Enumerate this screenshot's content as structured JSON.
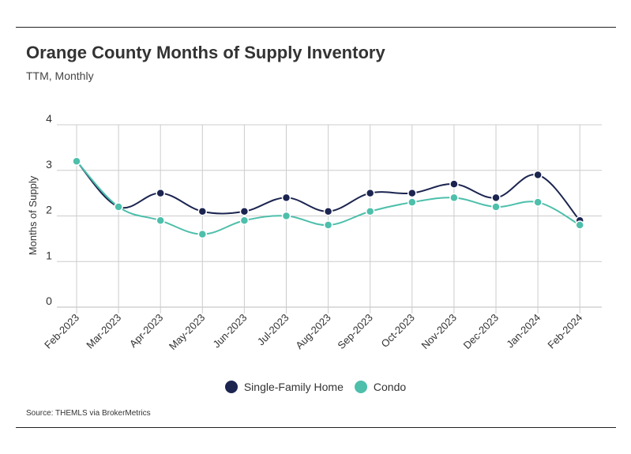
{
  "title": "Orange County Months of Supply Inventory",
  "subtitle": "TTM, Monthly",
  "source": "Source:  THEMLS via BrokerMetrics",
  "chart_data": {
    "type": "line",
    "x": [
      "Feb-2023",
      "Mar-2023",
      "Apr-2023",
      "May-2023",
      "Jun-2023",
      "Jul-2023",
      "Aug-2023",
      "Sep-2023",
      "Oct-2023",
      "Nov-2023",
      "Dec-2023",
      "Jan-2024",
      "Feb-2024"
    ],
    "series": [
      {
        "name": "Single-Family Home",
        "color": "#1c2550",
        "values": [
          3.2,
          2.2,
          2.5,
          2.1,
          2.1,
          2.4,
          2.1,
          2.5,
          2.5,
          2.7,
          2.4,
          2.9,
          1.9
        ]
      },
      {
        "name": "Condo",
        "color": "#4dbfab",
        "values": [
          3.2,
          2.2,
          1.9,
          1.6,
          1.9,
          2.0,
          1.8,
          2.1,
          2.3,
          2.4,
          2.2,
          2.3,
          1.8
        ]
      }
    ],
    "ylabel": "Months of Supply",
    "yticks": [
      0,
      1,
      2,
      3,
      4
    ],
    "ylim": [
      0,
      4
    ],
    "grid": true,
    "legend": "bottom-center",
    "smooth": true
  }
}
